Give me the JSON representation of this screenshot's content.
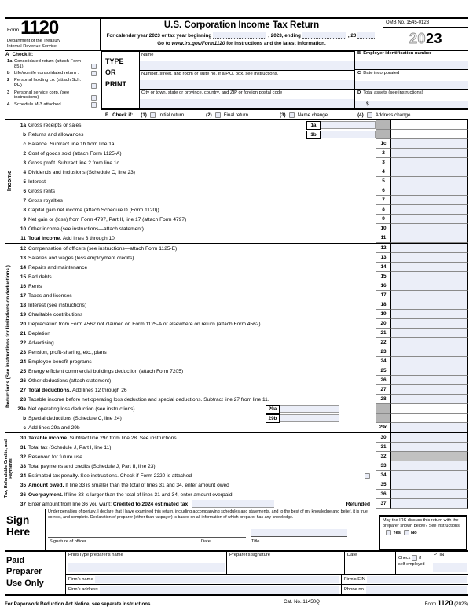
{
  "colors": {
    "field_fill": "#ebeef8",
    "shaded_cell": "#b5b5b5",
    "reserved_cell": "#c1c1c1"
  },
  "header": {
    "form_word": "Form",
    "form_number": "1120",
    "dept1": "Department of the Treasury",
    "dept2": "Internal Revenue Service",
    "title": "U.S. Corporation Income Tax Return",
    "cal_pre": "For calendar year 2023 or tax year beginning",
    "cal_mid": ", 2023, ending",
    "cal_end": ", 20",
    "goto_pre": "Go to",
    "goto_url": "www.irs.gov/Form1120",
    "goto_post": "for instructions and the latest information.",
    "omb": "OMB No. 1545-0123",
    "year_outline": "20",
    "year_bold": "23"
  },
  "check_if_a": {
    "letter": "A",
    "title": "Check if:",
    "items": [
      {
        "id": "consolidated-return",
        "num": "1a",
        "label": "Consolidated return (attach Form 851)"
      },
      {
        "id": "life-nonlife-consolidated",
        "num": "b",
        "label": "Life/nonlife consolidated return ."
      },
      {
        "id": "personal-holding-co",
        "num": "2",
        "label": "Personal holding co. (attach Sch. PH) ."
      },
      {
        "id": "personal-service-corp",
        "num": "3",
        "label": "Personal service corp. (see instructions)"
      },
      {
        "id": "schedule-m3-attached",
        "num": "4",
        "label": "Schedule M-3 attached"
      }
    ]
  },
  "type_print": {
    "w1": "TYPE",
    "w2": "OR",
    "w3": "PRINT",
    "name_label": "Name",
    "street_label": "Number, street, and room or suite no. If a P.O. box, see instructions.",
    "city_label": "City or town, state or province, country, and ZIP or foreign postal code"
  },
  "entity": {
    "b_letter": "B",
    "b_text": "Employer identification number",
    "c_letter": "C",
    "c_text": "Date incorporated",
    "d_letter": "D",
    "d_text": "Total assets (see instructions)",
    "d_dollar": "$"
  },
  "erow": {
    "letter": "E",
    "title": "Check if:",
    "options": [
      {
        "id": "initial-return",
        "num": "(1)",
        "label": "Initial return"
      },
      {
        "id": "final-return",
        "num": "(2)",
        "label": "Final return"
      },
      {
        "id": "name-change",
        "num": "(3)",
        "label": "Name change"
      },
      {
        "id": "address-change",
        "num": "(4)",
        "label": "Address change"
      }
    ]
  },
  "side_labels": {
    "income": "Income",
    "deductions": "Deductions (See instructions for limitations on deductions.)",
    "tax": "Tax, Refundable Credits, and Payments"
  },
  "table": {
    "sections": [
      {
        "id": "income",
        "rows": [
          {
            "num": "1a",
            "label": "Gross receipts or sales",
            "inner": "1a",
            "innerPos": "right",
            "graynum": true,
            "nofill": true
          },
          {
            "num": "b",
            "label": "Returns and allowances",
            "inner": "1b",
            "innerPos": "right",
            "graynum": true,
            "nofill": true
          },
          {
            "num": "c",
            "label": "Balance. Subtract line 1b from line 1a",
            "box": "1c"
          },
          {
            "num": "2",
            "label": "Cost of goods sold (attach Form 1125-A)",
            "box": "2"
          },
          {
            "num": "3",
            "label": "Gross profit. Subtract line 2 from line 1c",
            "box": "3"
          },
          {
            "num": "4",
            "label": "Dividends and inclusions (Schedule C, line 23)",
            "box": "4"
          },
          {
            "num": "5",
            "label": "Interest",
            "box": "5"
          },
          {
            "num": "6",
            "label": "Gross rents",
            "box": "6"
          },
          {
            "num": "7",
            "label": "Gross royalties",
            "box": "7"
          },
          {
            "num": "8",
            "label": "Capital gain net income (attach Schedule D (Form 1120))",
            "box": "8"
          },
          {
            "num": "9",
            "label": "Net gain or (loss) from Form 4797, Part II, line 17 (attach Form 4797)",
            "box": "9"
          },
          {
            "num": "10",
            "label": "Other income (see instructions—attach statement)",
            "box": "10"
          },
          {
            "num": "11",
            "bold": "Total income.",
            "label": "Add lines 3 through 10",
            "box": "11"
          }
        ]
      },
      {
        "id": "deductions",
        "rows": [
          {
            "num": "12",
            "label": "Compensation of officers (see instructions—attach Form 1125-E)",
            "box": "12"
          },
          {
            "num": "13",
            "label": "Salaries and wages (less employment credits)",
            "box": "13"
          },
          {
            "num": "14",
            "label": "Repairs and maintenance",
            "box": "14"
          },
          {
            "num": "15",
            "label": "Bad debts",
            "box": "15"
          },
          {
            "num": "16",
            "label": "Rents",
            "box": "16"
          },
          {
            "num": "17",
            "label": "Taxes and licenses",
            "box": "17"
          },
          {
            "num": "18",
            "label": "Interest (see instructions)",
            "box": "18"
          },
          {
            "num": "19",
            "label": "Charitable contributions",
            "box": "19"
          },
          {
            "num": "20",
            "label": "Depreciation from Form 4562 not claimed on Form 1125-A or elsewhere on return (attach Form 4562)",
            "box": "20"
          },
          {
            "num": "21",
            "label": "Depletion",
            "box": "21"
          },
          {
            "num": "22",
            "label": "Advertising",
            "box": "22"
          },
          {
            "num": "23",
            "label": "Pension, profit-sharing, etc., plans",
            "box": "23"
          },
          {
            "num": "24",
            "label": "Employee benefit programs",
            "box": "24"
          },
          {
            "num": "25",
            "label": "Energy efficient commercial buildings deduction (attach Form 7205)",
            "box": "25"
          },
          {
            "num": "26",
            "label": "Other deductions (attach statement)",
            "box": "26"
          },
          {
            "num": "27",
            "bold": "Total deductions.",
            "label": "Add lines 12 through 26",
            "box": "27"
          },
          {
            "num": "28",
            "label": "Taxable income before net operating loss deduction and special deductions. Subtract line 27 from line 11.",
            "box": "28"
          },
          {
            "num": "29a",
            "label": "Net operating loss deduction (see instructions)",
            "inner": "29a",
            "innerPos": "mid",
            "graynum": true,
            "nofill": true
          },
          {
            "num": "b",
            "label": "Special deductions (Schedule C, line 24)",
            "inner": "29b",
            "innerPos": "mid",
            "graynum": true,
            "nofill": true
          },
          {
            "num": "c",
            "label": "Add lines 29a and 29b",
            "box": "29c"
          }
        ]
      },
      {
        "id": "tax-payments",
        "rows": [
          {
            "num": "30",
            "bold": "Taxable income.",
            "label": "Subtract line 29c from line 28. See instructions",
            "box": "30"
          },
          {
            "num": "31",
            "label": "Total tax (Schedule J, Part I, line 11)",
            "box": "31"
          },
          {
            "num": "32",
            "label": "Reserved for future use",
            "box": "32",
            "grayamt": true
          },
          {
            "num": "33",
            "label": "Total payments and credits (Schedule J, Part II, line 23)",
            "box": "33"
          },
          {
            "num": "34",
            "label": "Estimated tax penalty. See instructions. Check if Form 2220 is attached",
            "box": "34",
            "checkbox": true
          },
          {
            "num": "35",
            "bold": "Amount owed.",
            "label": "If line 33 is smaller than the total of lines 31 and 34, enter amount owed",
            "box": "35"
          },
          {
            "num": "36",
            "bold": "Overpayment.",
            "label": "If line 33 is larger than the total of lines 31 and 34, enter amount overpaid",
            "box": "36"
          },
          {
            "num": "37",
            "pre": "Enter amount from line 36 you want:",
            "bold": "Credited to 2024 estimated tax",
            "refund": "Refunded",
            "box": "37"
          }
        ]
      }
    ]
  },
  "sign": {
    "label1": "Sign",
    "label2": "Here",
    "perjury": "Under penalties of perjury, I declare that I have examined this return, including accompanying schedules and statements, and to the best of my knowledge and belief, it is true, correct, and complete. Declaration of preparer (other than taxpayer) is based on all information of which preparer has any knowledge.",
    "sig_label": "Signature of officer",
    "date_label": "Date",
    "title_label": "Title",
    "discuss": "May the IRS discuss this return with the preparer shown below? See instructions.",
    "yes": "Yes",
    "no": "No"
  },
  "preparer": {
    "label1": "Paid",
    "label2": "Preparer",
    "label3": "Use Only",
    "name_label": "Print/Type preparer's name",
    "sig_label": "Preparer's signature",
    "date_label": "Date",
    "check_word": "Check",
    "if_word": "if",
    "self_employed": "self-employed",
    "ptin_label": "PTIN",
    "firm_name": "Firm's name",
    "firm_ein": "Firm's EIN",
    "firm_address": "Firm's address",
    "phone": "Phone no."
  },
  "footer": {
    "notice": "For Paperwork Reduction Act Notice, see separate instructions.",
    "cat": "Cat. No. 11450Q",
    "form_word": "Form",
    "form_number": "1120",
    "year": "(2023)"
  }
}
